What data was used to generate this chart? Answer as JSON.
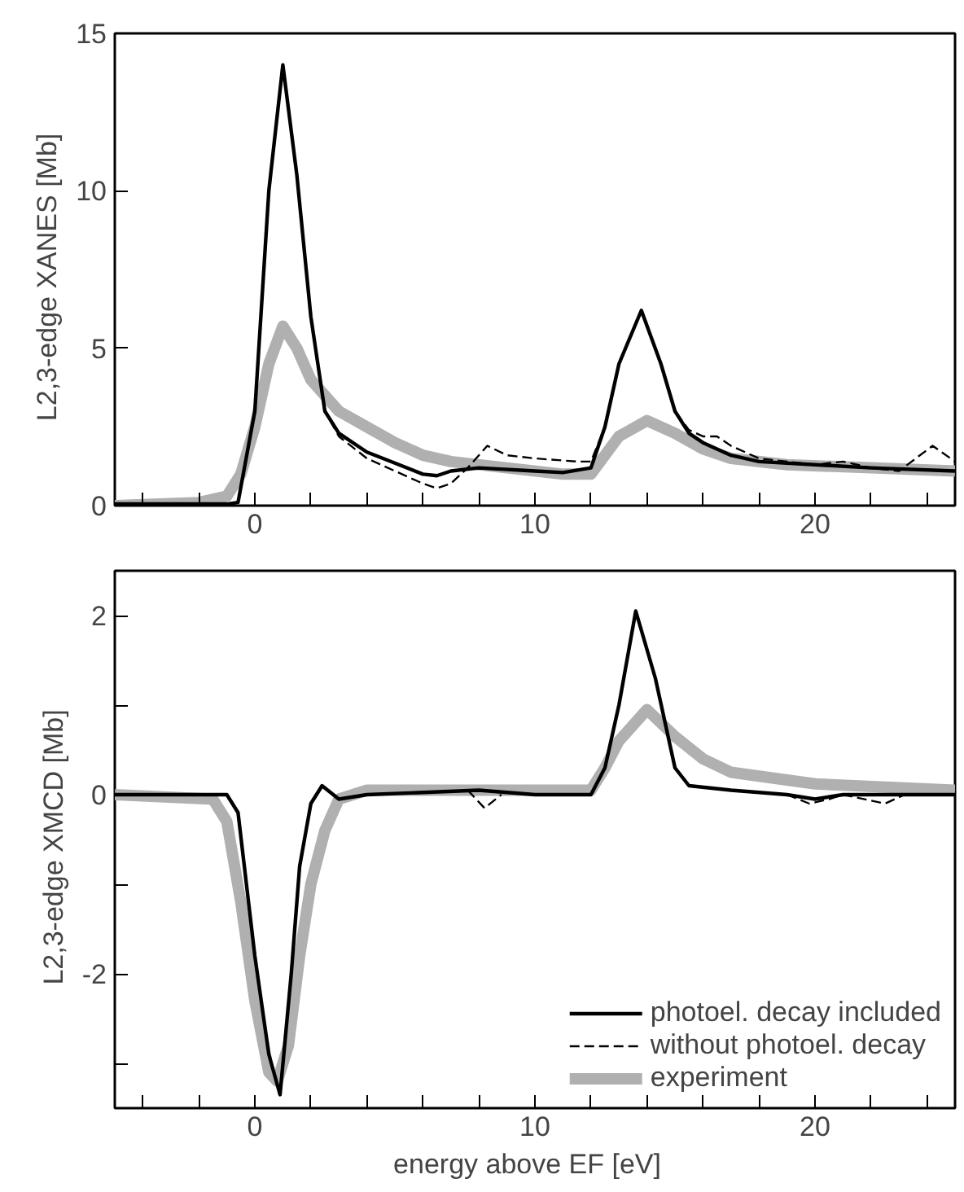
{
  "chart_data": [
    {
      "type": "line",
      "ylabel": "L2,3-edge XANES   [Mb]",
      "xlim": [
        -5,
        25
      ],
      "ylim": [
        0,
        15
      ],
      "xticks": [
        {
          "value": -4,
          "label": null
        },
        {
          "value": -2,
          "label": null
        },
        0,
        {
          "value": 2,
          "label": null
        },
        {
          "value": 4,
          "label": null
        },
        {
          "value": 6,
          "label": null
        },
        {
          "value": 8,
          "label": null
        },
        10,
        {
          "value": 12,
          "label": null
        },
        {
          "value": 14,
          "label": null
        },
        {
          "value": 16,
          "label": null
        },
        {
          "value": 18,
          "label": null
        },
        20,
        {
          "value": 22,
          "label": null
        },
        {
          "value": 24,
          "label": null
        }
      ],
      "yticks": [
        0,
        5,
        10,
        15
      ],
      "grid": false,
      "legend": false,
      "series": [
        {
          "color": "#000000",
          "line_style": "solid",
          "x": [
            -5,
            -1,
            -0.6,
            0,
            0.5,
            1,
            1.5,
            2,
            2.5,
            3,
            4,
            5,
            6,
            6.5,
            7,
            8,
            10,
            11,
            12,
            12.5,
            13,
            13.8,
            14.5,
            15,
            15.5,
            16,
            17,
            18,
            20,
            22,
            25
          ],
          "values": [
            0.05,
            0.05,
            0.1,
            3,
            10,
            14,
            10.5,
            6,
            3,
            2.3,
            1.7,
            1.35,
            1.0,
            0.95,
            1.1,
            1.2,
            1.1,
            1.05,
            1.2,
            2.5,
            4.5,
            6.2,
            4.5,
            3.0,
            2.3,
            2.0,
            1.6,
            1.4,
            1.3,
            1.2,
            1.1
          ]
        },
        {
          "color": "#000000",
          "line_style": "dashed",
          "x": [
            -5,
            -1,
            -0.6,
            0,
            0.5,
            1,
            1.5,
            2,
            2.5,
            3,
            4,
            5,
            6,
            6.5,
            7,
            7.6,
            8.3,
            9,
            10,
            11.5,
            12,
            12.5,
            13,
            13.8,
            14.5,
            15,
            15.5,
            16,
            16.5,
            17,
            18,
            20,
            21,
            22,
            23,
            24.2,
            25
          ],
          "values": [
            0.05,
            0.05,
            0.1,
            3,
            10,
            14,
            10.5,
            6,
            3,
            2.2,
            1.5,
            1.1,
            0.7,
            0.55,
            0.7,
            1.2,
            1.9,
            1.6,
            1.5,
            1.4,
            1.4,
            2.5,
            4.5,
            6.2,
            4.5,
            3.0,
            2.4,
            2.2,
            2.2,
            1.9,
            1.5,
            1.3,
            1.4,
            1.2,
            1.1,
            1.9,
            1.4
          ]
        },
        {
          "color": "#b0b0b0",
          "line_style": "solid",
          "x": [
            -5,
            -2,
            -1,
            -0.5,
            0,
            0.5,
            1,
            1.5,
            2,
            3,
            4,
            5,
            6,
            7,
            9,
            11,
            12,
            12.5,
            13,
            14,
            15,
            16,
            17,
            19,
            22,
            25
          ],
          "values": [
            0,
            0.1,
            0.3,
            1.0,
            2.5,
            4.5,
            5.7,
            5.0,
            4.0,
            3.0,
            2.5,
            2.0,
            1.6,
            1.4,
            1.2,
            1.0,
            1.0,
            1.6,
            2.2,
            2.7,
            2.3,
            1.8,
            1.5,
            1.3,
            1.2,
            1.1
          ]
        }
      ]
    },
    {
      "type": "line",
      "ylabel": "L2,3-edge XMCD   [Mb]",
      "xlabel": "energy above EF   [eV]",
      "xlim": [
        -5,
        25
      ],
      "ylim": [
        -3.5,
        2.5
      ],
      "xticks": [
        {
          "value": -4,
          "label": null
        },
        {
          "value": -2,
          "label": null
        },
        0,
        {
          "value": 2,
          "label": null
        },
        {
          "value": 4,
          "label": null
        },
        {
          "value": 6,
          "label": null
        },
        {
          "value": 8,
          "label": null
        },
        10,
        {
          "value": 12,
          "label": null
        },
        {
          "value": 14,
          "label": null
        },
        {
          "value": 16,
          "label": null
        },
        {
          "value": 18,
          "label": null
        },
        20,
        {
          "value": 22,
          "label": null
        },
        {
          "value": 24,
          "label": null
        }
      ],
      "yticks": [
        {
          "value": -3,
          "label": null
        },
        -2,
        {
          "value": -1,
          "label": null
        },
        0,
        {
          "value": 1,
          "label": null
        },
        2
      ],
      "grid": false,
      "legend": "bottom right",
      "series": [
        {
          "name": "photoel. decay included",
          "color": "#000000",
          "line_style": "solid",
          "x": [
            -5,
            -1,
            -0.6,
            0,
            0.5,
            0.9,
            1.3,
            1.6,
            2,
            2.4,
            3,
            4,
            8,
            10,
            12,
            12.5,
            13,
            13.6,
            14.3,
            15,
            15.5,
            17,
            19,
            20,
            21,
            25
          ],
          "values": [
            0,
            0,
            -0.2,
            -1.8,
            -2.9,
            -3.35,
            -2.0,
            -0.8,
            -0.1,
            0.1,
            -0.05,
            0,
            0.05,
            0,
            0,
            0.3,
            1.0,
            2.05,
            1.3,
            0.3,
            0.1,
            0.05,
            0,
            -0.05,
            0,
            0
          ]
        },
        {
          "name": "without photoel. decay",
          "color": "#000000",
          "line_style": "dashed",
          "x": [
            7.6,
            8.2,
            8.8,
            9.0,
            19,
            19.8,
            20.5,
            21,
            22.5,
            23.2
          ],
          "values": [
            0.05,
            -0.15,
            0.0,
            null,
            0,
            -0.1,
            -0.05,
            0,
            -0.1,
            0
          ]
        },
        {
          "name": "experiment",
          "color": "#b0b0b0",
          "line_style": "solid",
          "x": [
            -5,
            -1.5,
            -1,
            -0.5,
            0,
            0.5,
            0.8,
            1.2,
            1.6,
            2,
            2.5,
            3,
            4,
            10,
            12,
            12.5,
            13,
            14,
            15,
            16,
            17,
            20,
            25
          ],
          "values": [
            0,
            -0.05,
            -0.3,
            -1.2,
            -2.3,
            -3.1,
            -3.2,
            -2.8,
            -1.8,
            -1.0,
            -0.4,
            -0.05,
            0.05,
            0.05,
            0.05,
            0.3,
            0.6,
            0.95,
            0.65,
            0.4,
            0.25,
            0.12,
            0.05
          ]
        }
      ]
    }
  ]
}
